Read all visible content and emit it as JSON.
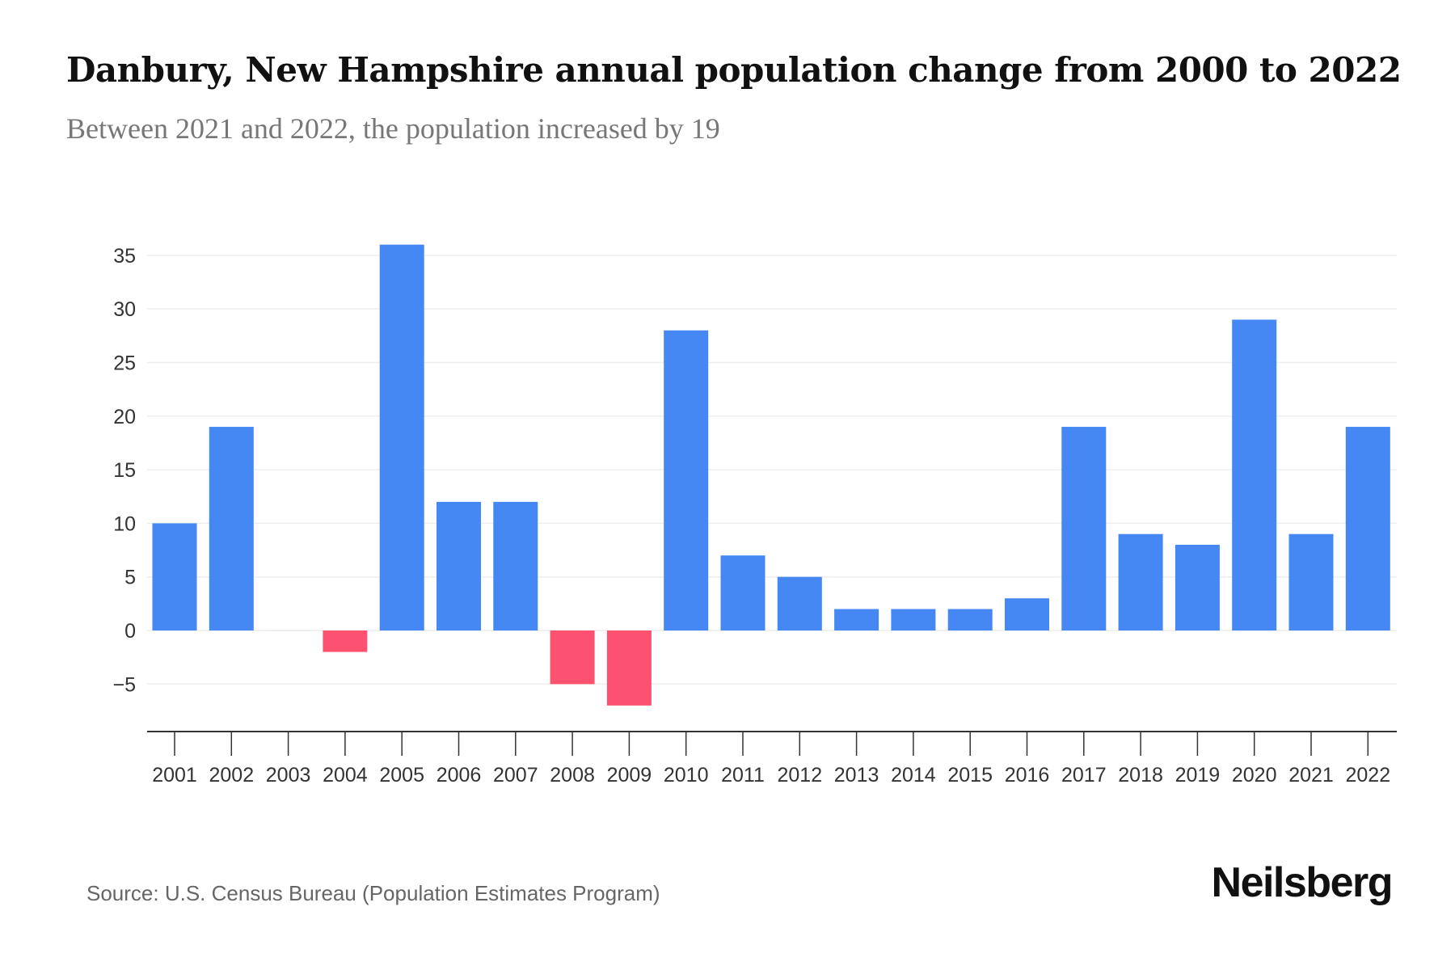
{
  "title": "Danbury, New Hampshire annual population change from 2000 to 2022",
  "subtitle": "Between 2021 and 2022, the population increased by 19",
  "source": "Source: U.S. Census Bureau (Population Estimates Program)",
  "logo": "Neilsberg",
  "colors": {
    "positive": "#4587F3",
    "negative": "#FC526F",
    "grid": "#EEEEEE",
    "axis": "#333333"
  },
  "chart_data": {
    "type": "bar",
    "title": "Danbury, New Hampshire annual population change from 2000 to 2022",
    "xlabel": "",
    "ylabel": "",
    "ylim": [
      -9,
      36
    ],
    "yticks": [
      -5,
      0,
      5,
      10,
      15,
      20,
      25,
      30,
      35
    ],
    "ytick_labels": [
      "−5",
      "0",
      "5",
      "10",
      "15",
      "20",
      "25",
      "30",
      "35"
    ],
    "grid": true,
    "categories": [
      "2001",
      "2002",
      "2003",
      "2004",
      "2005",
      "2006",
      "2007",
      "2008",
      "2009",
      "2010",
      "2011",
      "2012",
      "2013",
      "2014",
      "2015",
      "2016",
      "2017",
      "2018",
      "2019",
      "2020",
      "2021",
      "2022"
    ],
    "values": [
      10,
      19,
      0,
      -2,
      36,
      12,
      12,
      -5,
      -7,
      28,
      7,
      5,
      2,
      2,
      2,
      3,
      19,
      9,
      8,
      29,
      9,
      19
    ]
  }
}
